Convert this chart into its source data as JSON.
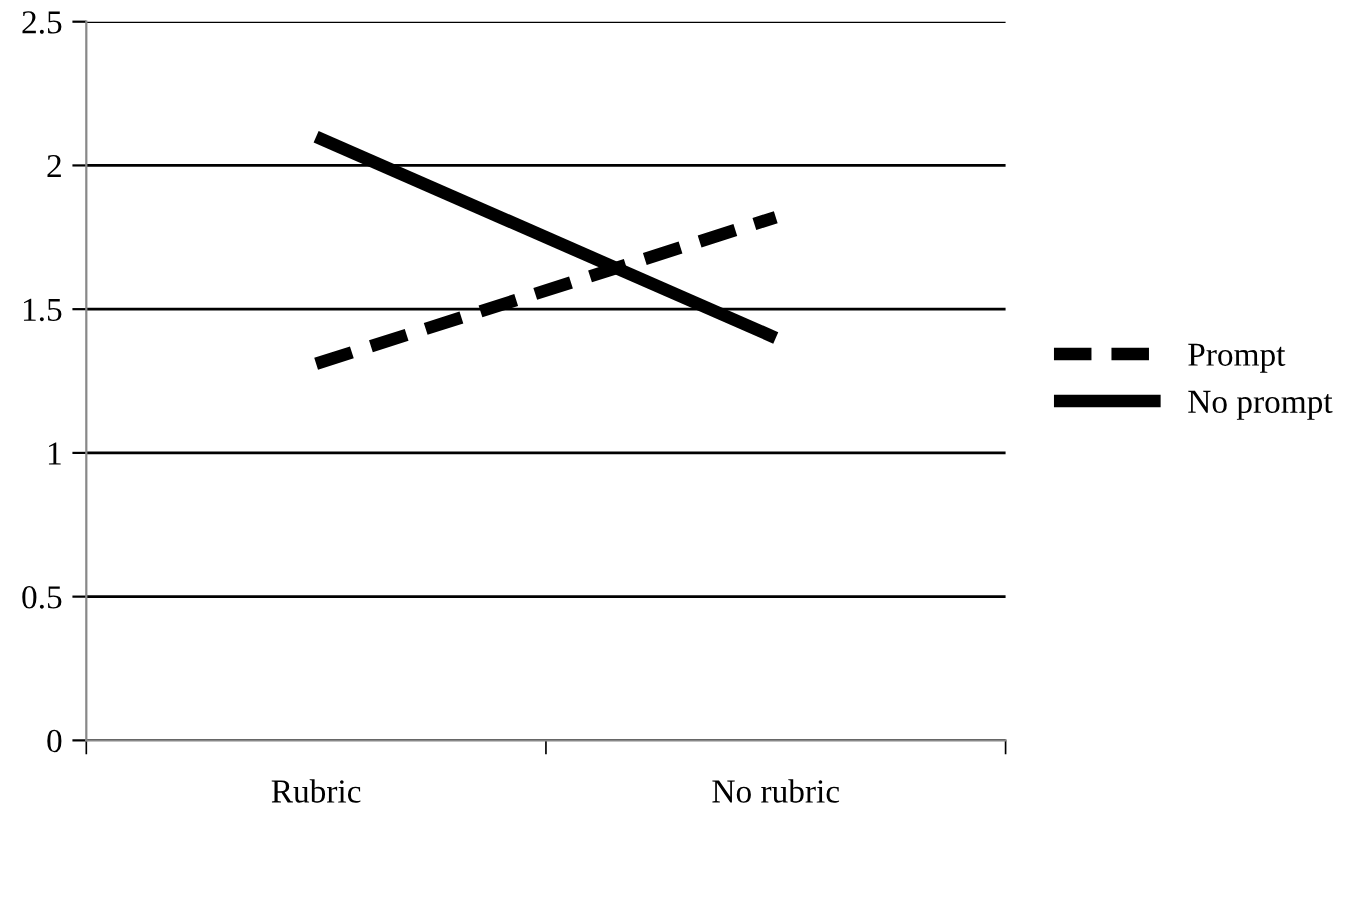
{
  "chart_data": {
    "type": "line",
    "categories": [
      "Rubric",
      "No rubric"
    ],
    "series": [
      {
        "name": "Prompt",
        "color": "#000000",
        "line_style": "dashed",
        "values": [
          1.31,
          1.82
        ]
      },
      {
        "name": "No prompt",
        "color": "#000000",
        "line_style": "solid",
        "values": [
          2.1,
          1.4
        ]
      }
    ],
    "ylim": [
      0,
      2.5
    ],
    "yticks": [
      0,
      0.5,
      1,
      1.5,
      2,
      2.5
    ],
    "grid": "y",
    "legend": "right",
    "marker": "none"
  }
}
